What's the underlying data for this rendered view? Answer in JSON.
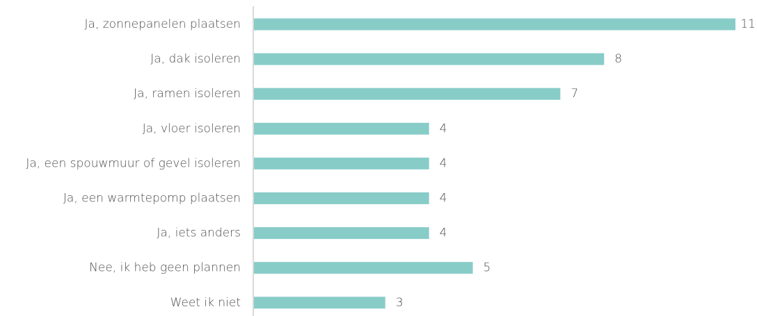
{
  "chart_data": {
    "type": "bar",
    "orientation": "horizontal",
    "categories": [
      "Ja, zonnepanelen plaatsen",
      "Ja, dak isoleren",
      "Ja, ramen isoleren",
      "Ja, vloer isoleren",
      "Ja, een spouwmuur of gevel isoleren",
      "Ja, een warmtepomp plaatsen",
      "Ja, iets anders",
      "Nee, ik heb geen plannen",
      "Weet ik niet"
    ],
    "values": [
      11,
      8,
      7,
      4,
      4,
      4,
      4,
      5,
      3
    ],
    "value_labels": [
      "11",
      "8",
      "7",
      "4",
      "4",
      "4",
      "4",
      "5",
      "3"
    ],
    "title": "",
    "xlabel": "",
    "ylabel": "",
    "xlim": [
      0,
      11
    ],
    "grid": false,
    "legend": "none",
    "colors": {
      "bar": "#88ccc8",
      "axis": "#d9d9d9",
      "text": "#4d4d4d"
    }
  }
}
